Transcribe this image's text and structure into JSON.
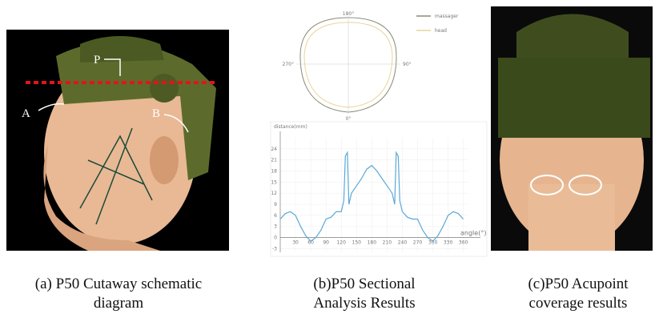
{
  "figure": {
    "panels": [
      {
        "caption": [
          "(a) P50 Cutaway schematic",
          "diagram"
        ],
        "labels": [
          "P",
          "A",
          "B"
        ]
      },
      {
        "caption": [
          "(b)P50 Sectional",
          "Analysis Results"
        ],
        "polar": {
          "angles": [
            "180°",
            "270°",
            "90°",
            "0°"
          ],
          "legend": [
            {
              "name": "massager",
              "color": "#8a8a7a"
            },
            {
              "name": "head",
              "color": "#e9d49a"
            }
          ]
        },
        "plot": {
          "type": "line",
          "ylabel": "distance(mm)",
          "xlabel": "angle(°)",
          "color": "#5aa9d6",
          "x": [
            0,
            10,
            20,
            30,
            40,
            50,
            60,
            70,
            80,
            90,
            100,
            110,
            120,
            125,
            128,
            132,
            135,
            140,
            150,
            160,
            170,
            180,
            190,
            200,
            210,
            220,
            225,
            228,
            232,
            235,
            240,
            250,
            260,
            270,
            280,
            290,
            300,
            310,
            320,
            330,
            340,
            350,
            360
          ],
          "values": [
            5,
            6.5,
            7,
            6,
            3,
            0.5,
            -1,
            0,
            2,
            5,
            5.5,
            7,
            7,
            10,
            22,
            23,
            9,
            12,
            14,
            16,
            18.5,
            19.5,
            18,
            16,
            14,
            12,
            9,
            23,
            22,
            10,
            7,
            5.5,
            5,
            5,
            2,
            0,
            -1,
            0.5,
            3,
            6,
            7,
            6.5,
            5
          ],
          "xlim": [
            0,
            370
          ],
          "ylim": [
            -4,
            27
          ],
          "xticks": [
            30,
            60,
            90,
            120,
            150,
            180,
            210,
            240,
            270,
            300,
            330,
            360
          ],
          "yticks": [
            -3,
            0,
            3,
            6,
            9,
            12,
            15,
            18,
            21,
            24
          ],
          "grid": true
        }
      },
      {
        "caption": [
          "(c)P50 Acupoint",
          "coverage results"
        ]
      }
    ]
  }
}
